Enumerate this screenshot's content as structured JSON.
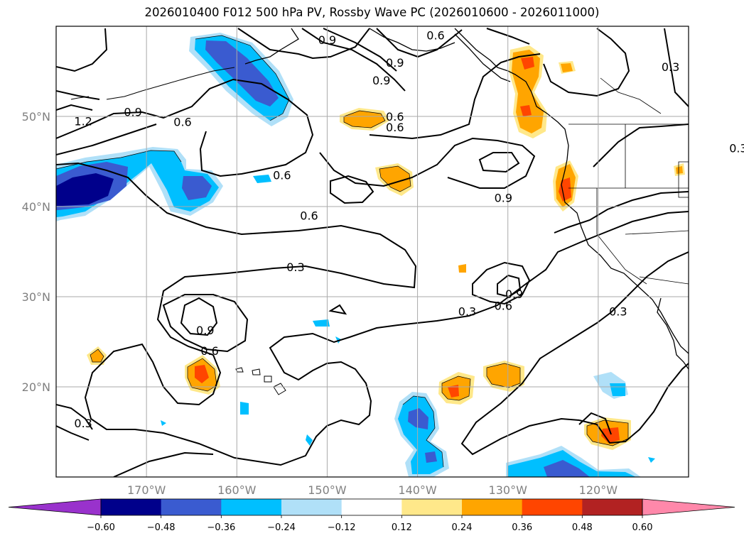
{
  "figure": {
    "title": "2026010400 F012 500 hPa PV, Rossby Wave PC (2026010600 - 2026011000)"
  },
  "map": {
    "projection": "plate-carree",
    "lon_range": [
      -180,
      -110
    ],
    "lat_range": [
      10,
      60
    ],
    "grid": true,
    "lat_ticks": [
      "20°N",
      "30°N",
      "40°N",
      "50°N"
    ],
    "lon_ticks": [
      "170°W",
      "160°W",
      "150°W",
      "140°W",
      "130°W",
      "120°W"
    ],
    "coastlines": true,
    "state_borders": true
  },
  "chart_data": {
    "type": "heatmap",
    "title": "2026010400 F012 500 hPa PV, Rossby Wave PC (2026010600 - 2026011000)",
    "filled_field": {
      "levels": [
        -0.6,
        -0.48,
        -0.36,
        -0.24,
        -0.12,
        0.12,
        0.24,
        0.36,
        0.48,
        0.6
      ],
      "colors": [
        "#9932cc",
        "#00008b",
        "#3a5bd0",
        "#00bfff",
        "#b0e0f8",
        "#ffffff",
        "#ffe88a",
        "#ffa500",
        "#ff4500",
        "#b22222",
        "#ff88aa"
      ],
      "extend": "both"
    },
    "contour_field": {
      "levels": [
        0.3,
        0.6,
        0.9,
        1.2
      ],
      "visible_labels": [
        "0.3",
        "0.6",
        "0.9",
        "1.2"
      ]
    },
    "colorbar": {
      "ticks": [
        "−0.60",
        "−0.48",
        "−0.36",
        "−0.24",
        "−0.12",
        "0.12",
        "0.24",
        "0.36",
        "0.48",
        "0.60"
      ]
    }
  },
  "contour_labels": [
    {
      "text": "0.3",
      "lon": -153.5,
      "lat": 33.3
    },
    {
      "text": "0.3",
      "lon": -134.5,
      "lat": 28.4
    },
    {
      "text": "0.3",
      "lon": -117.8,
      "lat": 28.4
    },
    {
      "text": "0.3",
      "lon": -177.0,
      "lat": 16.0
    },
    {
      "text": "0.3",
      "lon": -112.0,
      "lat": 55.5
    },
    {
      "text": "0.3",
      "lon": -104.5,
      "lat": 46.5
    },
    {
      "text": "0.6",
      "lon": -152.0,
      "lat": 39.0
    },
    {
      "text": "0.6",
      "lon": -163.0,
      "lat": 24.0
    },
    {
      "text": "0.6",
      "lon": -166.0,
      "lat": 49.4
    },
    {
      "text": "0.6",
      "lon": -138.0,
      "lat": 59.0
    },
    {
      "text": "0.6",
      "lon": -142.5,
      "lat": 48.8
    },
    {
      "text": "0.6",
      "lon": -142.5,
      "lat": 50.0
    },
    {
      "text": "0.6",
      "lon": -130.5,
      "lat": 29.0
    },
    {
      "text": "0.6",
      "lon": -155.0,
      "lat": 43.5
    },
    {
      "text": "0.9",
      "lon": -144.0,
      "lat": 54.0
    },
    {
      "text": "0.9",
      "lon": -130.5,
      "lat": 41.0
    },
    {
      "text": "0.9",
      "lon": -163.5,
      "lat": 26.3
    },
    {
      "text": "0.9",
      "lon": -129.3,
      "lat": 30.3
    },
    {
      "text": "0.9",
      "lon": -150.0,
      "lat": 58.5
    },
    {
      "text": "0.9",
      "lon": -142.5,
      "lat": 56.0
    },
    {
      "text": "0.9",
      "lon": -171.5,
      "lat": 50.5
    },
    {
      "text": "1.2",
      "lon": -177.0,
      "lat": 49.5
    }
  ]
}
